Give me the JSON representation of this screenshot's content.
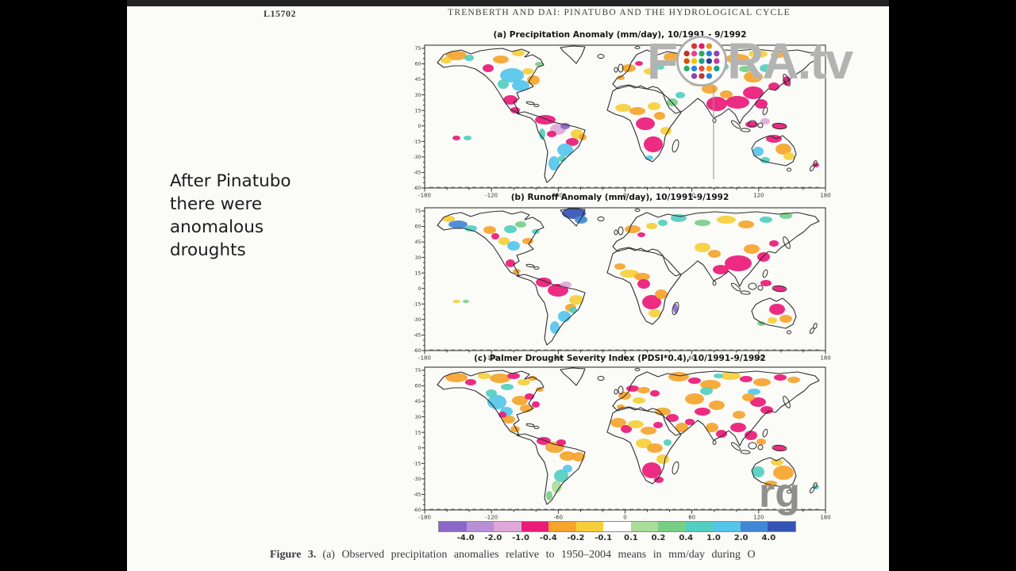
{
  "header": {
    "article_id": "L15702",
    "running_title": "TRENBERTH AND DAI: PINATUBO AND THE HYDROLOGICAL CYCLE"
  },
  "side_note": {
    "text": "After Pinatubo\nthere were\nanomalous\ndroughts"
  },
  "figure_caption": {
    "label": "Figure 3.",
    "text": "(a) Observed precipitation anomalies relative to 1950–2004 means in mm/day during O"
  },
  "watermark": {
    "logo_prefix": "F",
    "logo_suffix": "RA.tv",
    "partial_text": "rg"
  },
  "chart_data": {
    "type": "heatmap",
    "panels": [
      {
        "id": "a",
        "title": "(a) Precipitation Anomaly (mm/day), 10/1991 - 9/1992",
        "summary": "Dry anomalies (magenta/orange/yellow) over South and Southeast Asia, central and southern Africa, Amazonia, northern Australia, Europe and Siberia; wet anomalies (cyan) over central North America, southeastern South America and western Australia"
      },
      {
        "id": "b",
        "title": "(b) Runoff Anomaly (mm/day), 10/1991-9/1992",
        "summary": "Reduced runoff (magenta/orange) over Amazonia, central Africa, South and Southeast Asia and Australia; increased runoff (blue/cyan) over Greenland, Alaska coast and southeastern South America"
      },
      {
        "id": "c",
        "title": "(c) Palmer Drought Severity Index (PDSI*0.4), 10/1991-9/1992",
        "summary": "Widespread drought (orange/magenta) across most land areas, strongest over southern Africa, Sahel, Europe, central Asia and eastern China; moist conditions (cyan/teal) over western North America, southern South America and western Australia"
      }
    ],
    "axes": {
      "lon_range": [
        -180,
        180
      ],
      "lat_range": [
        -60,
        78
      ],
      "lon_ticks": [
        -180,
        -120,
        -60,
        0,
        60,
        120,
        180
      ],
      "lon_minor_step": 20,
      "lat_ticks": [
        75,
        60,
        45,
        30,
        15,
        0,
        -15,
        -30,
        -45,
        -60
      ],
      "lat_minor_step": 5,
      "grid": false
    },
    "colorbar": {
      "orientation": "horizontal",
      "tick_labels": [
        "-4.0",
        "-2.0",
        "-1.0",
        "-0.4",
        "-0.2",
        "-0.1",
        "0.1",
        "0.2",
        "0.4",
        "1.0",
        "2.0",
        "4.0"
      ],
      "segment_colors": [
        "#8b68c8",
        "#b990d8",
        "#dfa8da",
        "#ea1a78",
        "#f5a42c",
        "#f5cf3a",
        "#ffffff",
        "#aadd9a",
        "#77cf85",
        "#52cfc0",
        "#55c5ea",
        "#4187d6",
        "#3453b5"
      ]
    }
  },
  "colors": {
    "background": "#000000",
    "page": "#fbfbf8",
    "dry_strong": "#ea1a78",
    "dry_moderate": "#f5a42c",
    "wet_moderate": "#55c5ea",
    "wet_strong": "#3453b5"
  }
}
